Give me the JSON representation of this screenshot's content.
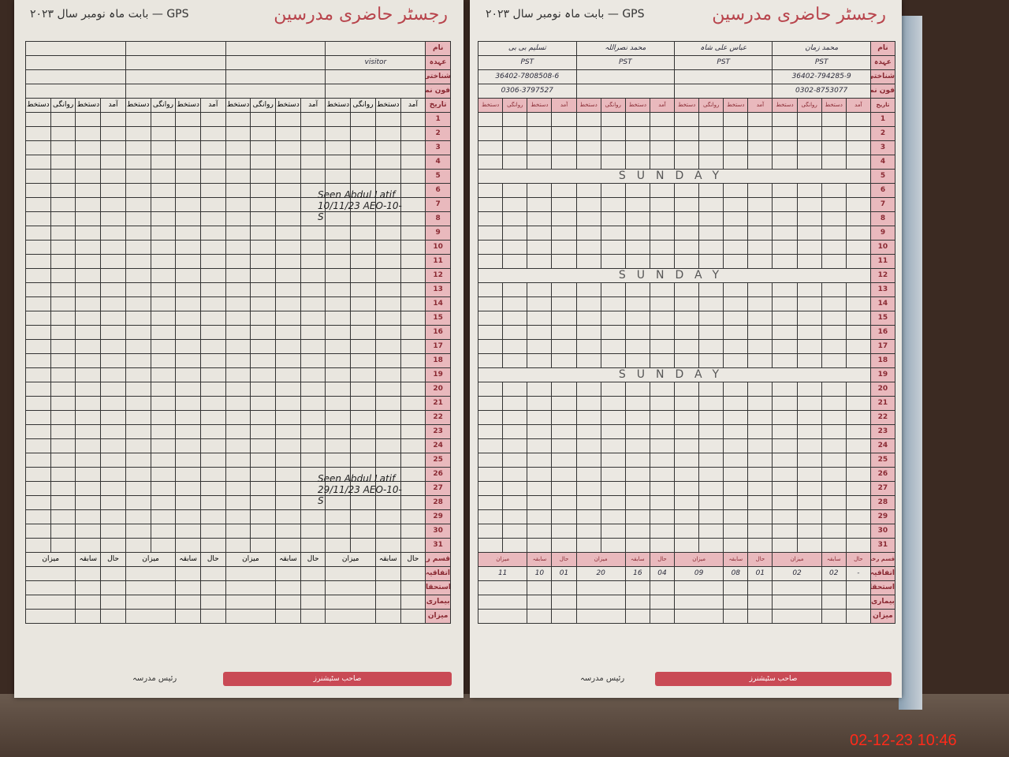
{
  "title": "رجسٹر حاضری مدرسین",
  "subtitle": "بابت ماہ نومبر سال ۲۰۲۳",
  "school": "GPS",
  "row_labels": {
    "name": "نام",
    "designation": "عہدہ",
    "cnic": "شناختی کارڈ نمبر",
    "phone": "فون نمبر",
    "date": "تاریخ"
  },
  "column_labels": [
    "آمد",
    "دستخط",
    "روانگی",
    "دستخط"
  ],
  "dates": [
    1,
    2,
    3,
    4,
    5,
    6,
    7,
    8,
    9,
    10,
    11,
    12,
    13,
    14,
    15,
    16,
    17,
    18,
    19,
    20,
    21,
    22,
    23,
    24,
    25,
    26,
    27,
    28,
    29,
    30,
    31
  ],
  "sunday_label": "SUNDAY",
  "sunday_dates": [
    5,
    12,
    19
  ],
  "summary": {
    "header": "قسم رخصت",
    "sub_labels": [
      "حال",
      "سابقہ",
      "میزان"
    ],
    "rows": [
      "اتفاقیہ",
      "استحقاقیہ",
      "بیماری",
      "میزان"
    ],
    "right_casual_values": [
      "-",
      "02",
      "02",
      "01",
      "08",
      "09",
      "04",
      "16",
      "20",
      "01",
      "10",
      "11"
    ]
  },
  "left_page": {
    "teachers": [
      {
        "name": "",
        "designation": "visitor",
        "cnic": "",
        "phone": ""
      },
      {
        "name": "",
        "designation": "",
        "cnic": "",
        "phone": ""
      },
      {
        "name": "",
        "designation": "",
        "cnic": "",
        "phone": ""
      },
      {
        "name": "",
        "designation": "",
        "cnic": "",
        "phone": ""
      }
    ],
    "notes": [
      {
        "text": "Seen Abdul Latif 10/11/23 AEO-10-S"
      },
      {
        "text": "Seen Abdul Latif 29/11/23 AEO-10-S"
      }
    ]
  },
  "right_page": {
    "teachers": [
      {
        "name": "محمد زمان",
        "designation": "PST",
        "cnic": "36402-794285-9",
        "phone": "0302-8753077"
      },
      {
        "name": "عباس علی شاہ",
        "designation": "PST",
        "cnic": "",
        "phone": ""
      },
      {
        "name": "محمد نصراللہ",
        "designation": "PST",
        "cnic": "",
        "phone": ""
      },
      {
        "name": "تسلیم بی بی",
        "designation": "PST",
        "cnic": "36402-7808508-6",
        "phone": "0306-3797527"
      }
    ]
  },
  "signature_label": "رئیس مدرسہ",
  "publisher": "صاحب سٹیشنرز",
  "timestamp": "02-12-23  10:46"
}
